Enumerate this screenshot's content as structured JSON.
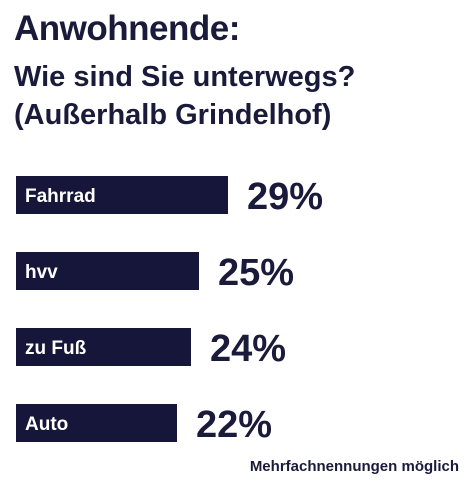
{
  "header": {
    "title": "Anwohnende:",
    "subtitle_line1": "Wie sind Sie unterwegs?",
    "subtitle_line2": "(Außerhalb Grindelhof)"
  },
  "footnote": "Mehrfachnennungen möglich",
  "colors": {
    "bar": "#16163a",
    "bar_text": "#ffffff",
    "text": "#1a1a3a",
    "background": "#ffffff"
  },
  "chart_data": {
    "type": "bar",
    "orientation": "horizontal",
    "categories": [
      "Fahrrad",
      "hvv",
      "zu Fuß",
      "Auto"
    ],
    "values": [
      29,
      25,
      24,
      22
    ],
    "value_labels": [
      "29%",
      "25%",
      "24%",
      "22%"
    ],
    "unit": "%",
    "xlim": [
      0,
      29
    ]
  }
}
